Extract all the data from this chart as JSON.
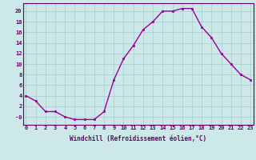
{
  "x": [
    0,
    1,
    2,
    3,
    4,
    5,
    6,
    7,
    8,
    9,
    10,
    11,
    12,
    13,
    14,
    15,
    16,
    17,
    18,
    19,
    20,
    21,
    22,
    23
  ],
  "y": [
    4,
    3,
    1,
    1,
    0,
    -0.5,
    -0.5,
    -0.5,
    1,
    7,
    11,
    13.5,
    16.5,
    18,
    20,
    20,
    20.5,
    20.5,
    17,
    15,
    12,
    10,
    8,
    7
  ],
  "line_color": "#990099",
  "marker_color": "#990099",
  "bg_color": "#cce8e8",
  "grid_color": "#aacccc",
  "xlabel": "Windchill (Refroidissement éolien,°C)",
  "ytick_vals": [
    0,
    2,
    4,
    6,
    8,
    10,
    12,
    14,
    16,
    18,
    20
  ],
  "ytick_labels": [
    "-0",
    "2",
    "4",
    "6",
    "8",
    "10",
    "12",
    "14",
    "16",
    "18",
    "20"
  ],
  "xtick_vals": [
    0,
    1,
    2,
    3,
    4,
    5,
    6,
    7,
    8,
    9,
    10,
    11,
    12,
    13,
    14,
    15,
    16,
    17,
    18,
    19,
    20,
    21,
    22,
    23
  ],
  "xtick_labels": [
    "0",
    "1",
    "2",
    "3",
    "4",
    "5",
    "6",
    "7",
    "8",
    "9",
    "10",
    "11",
    "12",
    "13",
    "14",
    "15",
    "16",
    "17",
    "18",
    "19",
    "20",
    "21",
    "22",
    "23"
  ],
  "ylim": [
    -1.5,
    21.5
  ],
  "xlim": [
    -0.3,
    23.3
  ],
  "label_color": "#660066",
  "tick_color": "#660066",
  "spine_color": "#660066",
  "tick_fontsize": 5.0,
  "xlabel_fontsize": 5.5,
  "linewidth": 1.0,
  "markersize": 2.0
}
